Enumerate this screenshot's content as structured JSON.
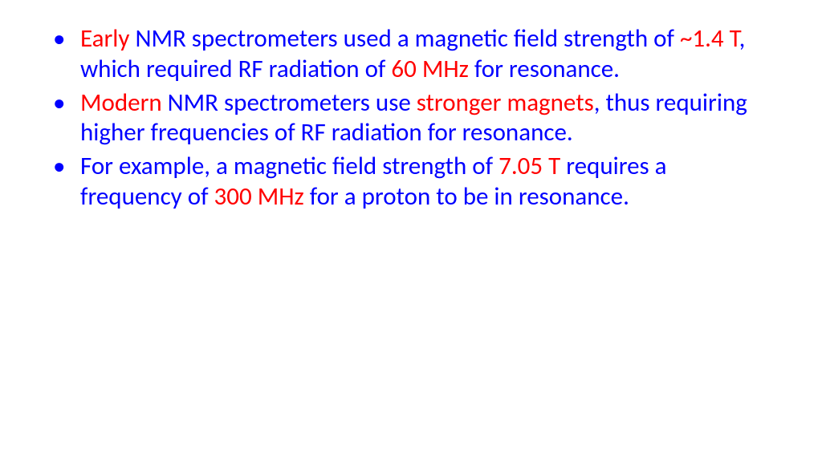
{
  "slide": {
    "background_color": "#ffffff",
    "font_family": "Calibri",
    "font_size_pt": 28,
    "line_height": 1.22,
    "text_color_blue": "#0000ff",
    "text_color_red": "#ff0000",
    "bullet_color": "#0000ff",
    "bullets": [
      {
        "segments": [
          {
            "text": "Early ",
            "color": "red"
          },
          {
            "text": "NMR spectrometers used a magnetic field strength of ",
            "color": "blue"
          },
          {
            "text": "~1.4 T",
            "color": "red"
          },
          {
            "text": ", which required RF radiation of ",
            "color": "blue"
          },
          {
            "text": "60 MHz ",
            "color": "red"
          },
          {
            "text": "for resonance.",
            "color": "blue"
          }
        ]
      },
      {
        "segments": [
          {
            "text": "Modern ",
            "color": "red"
          },
          {
            "text": "NMR spectrometers use ",
            "color": "blue"
          },
          {
            "text": "stronger magnets",
            "color": "red"
          },
          {
            "text": ", thus requiring higher frequencies of RF radiation for resonance.",
            "color": "blue"
          }
        ]
      },
      {
        "segments": [
          {
            "text": "For example, a magnetic field strength of ",
            "color": "blue"
          },
          {
            "text": "7.05 T ",
            "color": "red"
          },
          {
            "text": "requires a frequency of ",
            "color": "blue"
          },
          {
            "text": "300 MHz ",
            "color": "red"
          },
          {
            "text": "for a proton to be in resonance.",
            "color": "blue"
          }
        ]
      }
    ]
  }
}
